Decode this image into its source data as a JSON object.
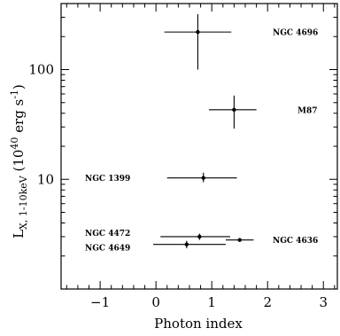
{
  "chart_data": {
    "type": "scatter",
    "xlabel": "Photon index",
    "ylabel": {
      "main": "L",
      "sub": "X, 1-10keV",
      "units_open": " (10",
      "units_exp": "40",
      "units_mid": " erg s",
      "units_exp2": "-1",
      "units_close": ")"
    },
    "xlim": [
      -1.7,
      3.25
    ],
    "ylim": [
      1,
      400
    ],
    "yscale": "log",
    "xticks": [
      {
        "value": -1,
        "label": "−1"
      },
      {
        "value": 0,
        "label": "0"
      },
      {
        "value": 1,
        "label": "1"
      },
      {
        "value": 2,
        "label": "2"
      },
      {
        "value": 3,
        "label": "3"
      }
    ],
    "yticks": [
      {
        "value": 10,
        "label": "10"
      },
      {
        "value": 100,
        "label": "100"
      }
    ],
    "grid": false,
    "points": [
      {
        "label": "NGC 4696",
        "x": 0.75,
        "xerr": [
          0.6,
          0.6
        ],
        "y": 220,
        "yerr": [
          100,
          320
        ],
        "label_side": "right"
      },
      {
        "label": "M87",
        "x": 1.4,
        "xerr": [
          0.45,
          0.4
        ],
        "y": 43,
        "yerr": [
          29,
          58
        ],
        "label_side": "right"
      },
      {
        "label": "NGC 1399",
        "x": 0.85,
        "xerr": [
          0.65,
          0.6
        ],
        "y": 10.3,
        "yerr": [
          9.4,
          11.5
        ],
        "label_side": "left"
      },
      {
        "label": "NGC 4472",
        "x": 0.78,
        "xerr": [
          0.7,
          0.55
        ],
        "y": 3.0,
        "yerr": [
          2.8,
          3.2
        ],
        "label_side": "left"
      },
      {
        "label": "NGC 4649",
        "x": 0.55,
        "xerr": [
          0.6,
          0.7
        ],
        "y": 2.55,
        "yerr": [
          2.35,
          2.75
        ],
        "label_side": "left"
      },
      {
        "label": "NGC 4636",
        "x": 1.5,
        "xerr": [
          0.25,
          0.25
        ],
        "y": 2.8,
        "yerr": [
          2.7,
          2.9
        ],
        "label_side": "right"
      }
    ]
  }
}
